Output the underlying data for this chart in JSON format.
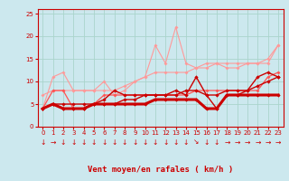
{
  "xlabel": "Vent moyen/en rafales ( km/h )",
  "background_color": "#cce8ee",
  "grid_color": "#aad4cc",
  "x": [
    0,
    1,
    2,
    3,
    4,
    5,
    6,
    7,
    8,
    9,
    10,
    11,
    12,
    13,
    14,
    15,
    16,
    17,
    18,
    19,
    20,
    21,
    22,
    23
  ],
  "series": [
    {
      "color": "#ff9999",
      "linewidth": 0.8,
      "markersize": 2.0,
      "y": [
        4,
        11,
        12,
        8,
        8,
        8,
        10,
        7,
        8,
        10,
        11,
        18,
        14,
        22,
        14,
        13,
        13,
        14,
        13,
        13,
        14,
        14,
        14,
        18
      ]
    },
    {
      "color": "#ff9999",
      "linewidth": 0.8,
      "markersize": 2.0,
      "y": [
        7,
        8,
        8,
        8,
        8,
        8,
        8,
        8,
        9,
        10,
        11,
        12,
        12,
        12,
        12,
        13,
        14,
        14,
        14,
        14,
        14,
        14,
        15,
        18
      ]
    },
    {
      "color": "#ff5555",
      "linewidth": 0.9,
      "markersize": 2.0,
      "y": [
        4,
        8,
        8,
        4,
        4,
        5,
        7,
        7,
        7,
        7,
        7,
        7,
        7,
        7,
        7,
        8,
        8,
        8,
        8,
        8,
        8,
        8,
        11,
        12
      ]
    },
    {
      "color": "#cc0000",
      "linewidth": 1.0,
      "markersize": 2.2,
      "y": [
        4,
        5,
        4,
        4,
        4,
        5,
        6,
        8,
        7,
        7,
        7,
        7,
        7,
        8,
        7,
        11,
        7,
        4,
        7,
        7,
        8,
        11,
        12,
        11
      ]
    },
    {
      "color": "#cc0000",
      "linewidth": 2.2,
      "markersize": 2.2,
      "y": [
        4,
        5,
        4,
        4,
        4,
        5,
        5,
        5,
        5,
        5,
        5,
        6,
        6,
        6,
        6,
        6,
        4,
        4,
        7,
        7,
        7,
        7,
        7,
        7
      ]
    },
    {
      "color": "#cc0000",
      "linewidth": 1.0,
      "markersize": 2.2,
      "y": [
        4,
        5,
        5,
        5,
        5,
        5,
        5,
        5,
        6,
        6,
        7,
        7,
        7,
        7,
        8,
        8,
        7,
        7,
        8,
        8,
        8,
        9,
        10,
        11
      ]
    }
  ],
  "arrow_dirs": [
    "↓",
    "→",
    "↓",
    "↓",
    "↓",
    "↓",
    "↓",
    "↓",
    "↓",
    "↓",
    "↓",
    "↓",
    "↓",
    "↓",
    "↓",
    "↘",
    "↓",
    "↓",
    "→",
    "→",
    "→",
    "→",
    "→",
    "→"
  ],
  "ylim": [
    0,
    26
  ],
  "yticks": [
    0,
    5,
    10,
    15,
    20,
    25
  ],
  "xticks": [
    0,
    1,
    2,
    3,
    4,
    5,
    6,
    7,
    8,
    9,
    10,
    11,
    12,
    13,
    14,
    15,
    16,
    17,
    18,
    19,
    20,
    21,
    22,
    23
  ],
  "tick_fontsize": 5.0,
  "label_fontsize": 6.5,
  "arrow_fontsize": 5.5
}
